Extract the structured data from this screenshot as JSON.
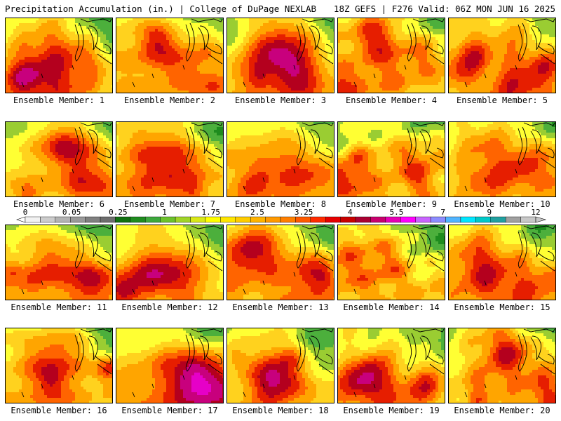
{
  "header": {
    "left": "Precipitation Accumulation (in.) | College of DuPage NEXLAB",
    "right": "18Z GEFS | F276 Valid: 06Z MON JUN 16 2025"
  },
  "panels": [
    {
      "label": "Ensemble Member: 1"
    },
    {
      "label": "Ensemble Member: 2"
    },
    {
      "label": "Ensemble Member: 3"
    },
    {
      "label": "Ensemble Member: 4"
    },
    {
      "label": "Ensemble Member: 5"
    },
    {
      "label": "Ensemble Member: 6"
    },
    {
      "label": "Ensemble Member: 7"
    },
    {
      "label": "Ensemble Member: 8"
    },
    {
      "label": "Ensemble Member: 9"
    },
    {
      "label": "Ensemble Member: 10"
    },
    {
      "label": "Ensemble Member: 11"
    },
    {
      "label": "Ensemble Member: 12"
    },
    {
      "label": "Ensemble Member: 13"
    },
    {
      "label": "Ensemble Member: 14"
    },
    {
      "label": "Ensemble Member: 15"
    },
    {
      "label": "Ensemble Member: 16"
    },
    {
      "label": "Ensemble Member: 17"
    },
    {
      "label": "Ensemble Member: 18"
    },
    {
      "label": "Ensemble Member: 19"
    },
    {
      "label": "Ensemble Member: 20"
    }
  ],
  "colorbar": {
    "tick_labels": [
      "0",
      "0.05",
      "0.25",
      "1",
      "1.75",
      "2.5",
      "3.25",
      "4",
      "5.5",
      "7",
      "9",
      "12"
    ],
    "bins": 34,
    "colors": [
      "#f2f2f2",
      "#cccccc",
      "#b3b3b3",
      "#999999",
      "#808080",
      "#6e6e6e",
      "#107010",
      "#1f8c1f",
      "#3ca83c",
      "#6cc22c",
      "#a0d428",
      "#d9e818",
      "#ffff00",
      "#ffe600",
      "#ffcc00",
      "#ffb300",
      "#ff9900",
      "#ff7f00",
      "#ff5a00",
      "#ff2a00",
      "#e60000",
      "#c80000",
      "#aa0032",
      "#c8006e",
      "#e600b4",
      "#ff00ff",
      "#c864ff",
      "#8c8cff",
      "#50b4ff",
      "#00e6ff",
      "#00c8c8",
      "#20a0a0",
      "#a0a0a0",
      "#c8c8c8"
    ]
  }
}
